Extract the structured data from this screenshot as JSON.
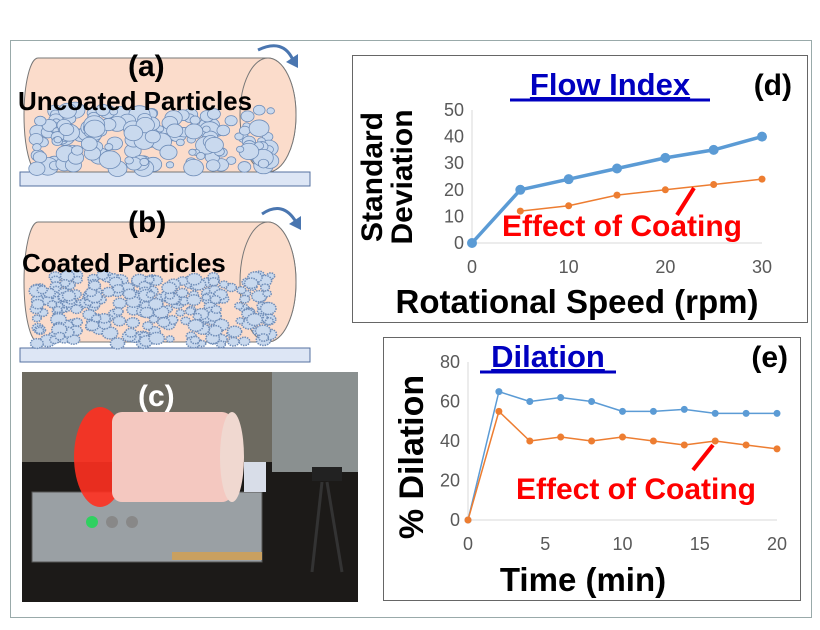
{
  "panels": {
    "a": {
      "label": "(a)",
      "title": "Uncoated Particles"
    },
    "b": {
      "label": "(b)",
      "title": "Coated Particles"
    },
    "c": {
      "label": "(c)"
    }
  },
  "colors": {
    "blue": "#5b9bd5",
    "orange": "#ed7d31",
    "title": "#0000c0",
    "annotation": "#ff0000"
  },
  "chart_data": [
    {
      "type": "line",
      "panel_label": "(d)",
      "title": "Flow Index",
      "xlabel": "Rotational Speed (rpm)",
      "ylabel": "Standard Deviation",
      "xlim": [
        0,
        30
      ],
      "ylim": [
        0,
        50
      ],
      "xticks": [
        0,
        10,
        20,
        30
      ],
      "yticks": [
        0,
        10,
        20,
        30,
        40,
        50
      ],
      "grid": false,
      "annotation": "Effect of Coating",
      "series": [
        {
          "color": "#5b9bd5",
          "x": [
            0,
            5,
            10,
            15,
            20,
            25,
            30
          ],
          "y": [
            0,
            20,
            24,
            28,
            32,
            35,
            40
          ]
        },
        {
          "color": "#ed7d31",
          "x": [
            5,
            10,
            15,
            20,
            25,
            30
          ],
          "y": [
            12,
            14,
            18,
            20,
            22,
            24
          ]
        }
      ]
    },
    {
      "type": "line",
      "panel_label": "(e)",
      "title": "Dilation",
      "xlabel": "Time (min)",
      "ylabel": "% Dilation",
      "xlim": [
        0,
        20
      ],
      "ylim": [
        0,
        80
      ],
      "xticks": [
        0,
        5,
        10,
        15,
        20
      ],
      "yticks": [
        0,
        20,
        40,
        60,
        80
      ],
      "grid": false,
      "annotation": "Effect of Coating",
      "series": [
        {
          "color": "#5b9bd5",
          "x": [
            0,
            2,
            4,
            6,
            8,
            10,
            12,
            14,
            16,
            18,
            20
          ],
          "y": [
            0,
            65,
            60,
            62,
            60,
            55,
            55,
            56,
            54,
            54,
            54
          ]
        },
        {
          "color": "#ed7d31",
          "x": [
            0,
            2,
            4,
            6,
            8,
            10,
            12,
            14,
            16,
            18,
            20
          ],
          "y": [
            0,
            55,
            40,
            42,
            40,
            42,
            40,
            38,
            40,
            38,
            36
          ]
        }
      ]
    }
  ]
}
